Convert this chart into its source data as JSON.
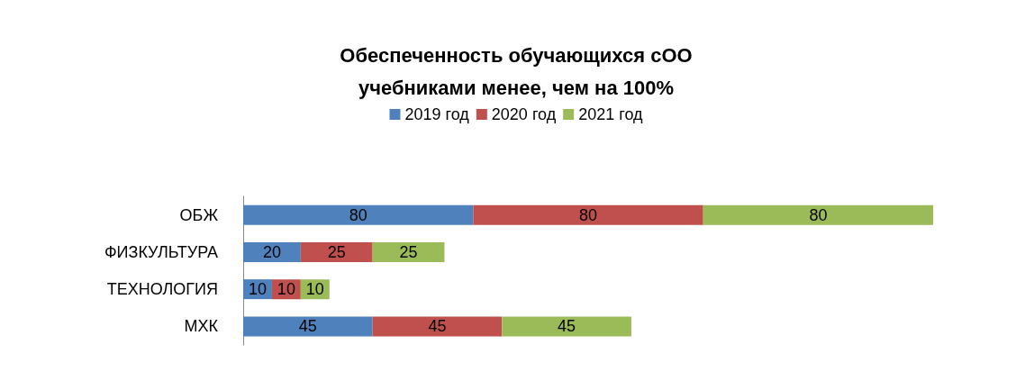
{
  "chart_data": {
    "type": "bar",
    "title": "Обеспеченность обучающихся сОО\nучебниками менее, чем на 100%",
    "categories": [
      "ОБЖ",
      "ФИЗКУЛЬТУРА",
      "ТЕХНОЛОГИЯ",
      "МХК"
    ],
    "orientation": "horizontal",
    "stacked": true,
    "data_labels": true,
    "legend": "top",
    "grid": false,
    "series": [
      {
        "name": "2019 год",
        "color": "#4f81bd",
        "values": [
          80,
          20,
          10,
          45
        ]
      },
      {
        "name": "2020 год",
        "color": "#c0504d",
        "values": [
          80,
          25,
          10,
          45
        ]
      },
      {
        "name": "2021 год",
        "color": "#9bbb59",
        "values": [
          80,
          25,
          10,
          45
        ]
      }
    ]
  }
}
